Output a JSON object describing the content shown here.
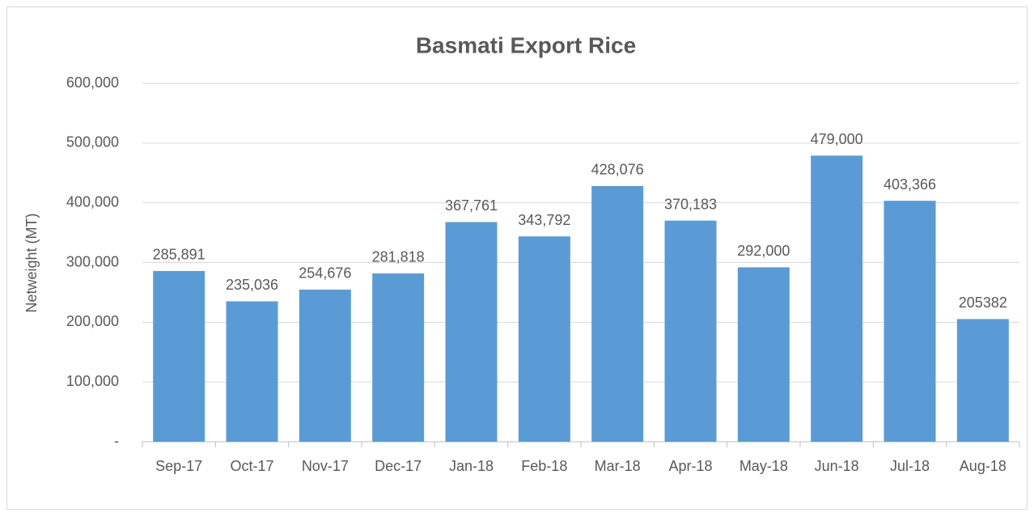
{
  "chart_data": {
    "type": "bar",
    "title": "Basmati Export Rice",
    "y_label": "Netweight (MT)",
    "categories": [
      "Sep-17",
      "Oct-17",
      "Nov-17",
      "Dec-17",
      "Jan-18",
      "Feb-18",
      "Mar-18",
      "Apr-18",
      "May-18",
      "Jun-18",
      "Jul-18",
      "Aug-18"
    ],
    "values": [
      285891,
      235036,
      254676,
      281818,
      367761,
      343792,
      428076,
      370183,
      292000,
      479000,
      403366,
      205382
    ],
    "value_labels": [
      "285,891",
      "235,036",
      "254,676",
      "281,818",
      "367,761",
      "343,792",
      "428,076",
      "370,183",
      "292,000",
      "479,000",
      "403,366",
      "205382"
    ],
    "color": "#5b9bd5",
    "ylim": [
      0,
      600000
    ],
    "yticks": [
      {
        "value": 0,
        "label": "-"
      },
      {
        "value": 100000,
        "label": "100,000"
      },
      {
        "value": 200000,
        "label": "200,000"
      },
      {
        "value": 300000,
        "label": "300,000"
      },
      {
        "value": 400000,
        "label": "400,000"
      },
      {
        "value": 500000,
        "label": "500,000"
      },
      {
        "value": 600000,
        "label": "600,000"
      }
    ],
    "grid": true
  }
}
